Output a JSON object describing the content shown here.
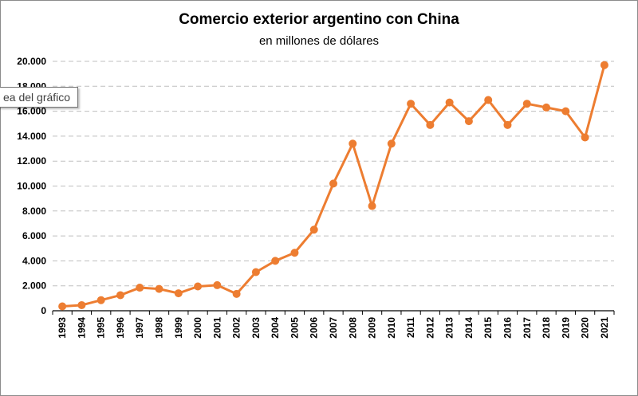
{
  "chart_data": {
    "type": "line",
    "title": "Comercio exterior argentino con China",
    "subtitle": "en millones de dólares",
    "xlabel": "",
    "ylabel": "",
    "ylim": [
      0,
      20000
    ],
    "y_ticks": [
      "0",
      "2.000",
      "4.000",
      "6.000",
      "8.000",
      "10.000",
      "12.000",
      "14.000",
      "16.000",
      "18.000",
      "20.000"
    ],
    "grid": true,
    "legend": "none",
    "categories": [
      "1993",
      "1994",
      "1995",
      "1996",
      "1997",
      "1998",
      "1999",
      "2000",
      "2001",
      "2002",
      "2003",
      "2004",
      "2005",
      "2006",
      "2007",
      "2008",
      "2009",
      "2010",
      "2011",
      "2012",
      "2013",
      "2014",
      "2015",
      "2016",
      "2017",
      "2018",
      "2019",
      "2020",
      "2021"
    ],
    "series": [
      {
        "name": "Comercio exterior argentino con China",
        "color": "#ed7d31",
        "values": [
          350,
          450,
          850,
          1250,
          1850,
          1750,
          1400,
          1950,
          2050,
          1350,
          3100,
          4000,
          4650,
          6500,
          10200,
          13400,
          8400,
          13400,
          16600,
          14900,
          16700,
          15200,
          16900,
          14900,
          16600,
          16300,
          16000,
          13900,
          19700
        ]
      }
    ]
  },
  "tooltip": {
    "label": "ea del gráfico"
  }
}
